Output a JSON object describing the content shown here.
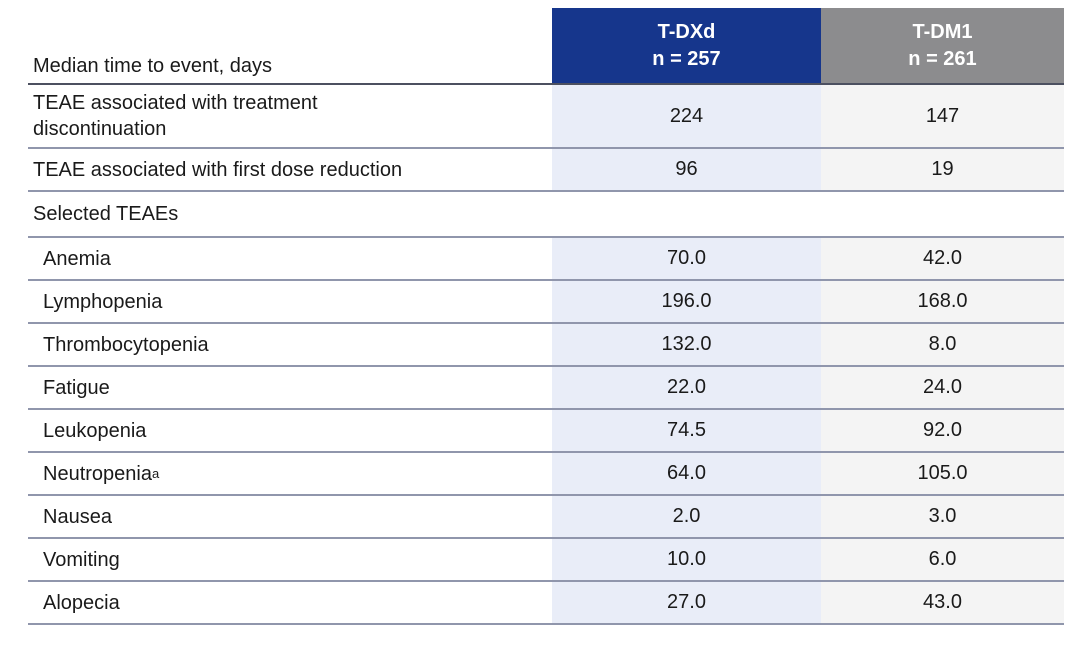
{
  "chart_data": {
    "type": "table",
    "title": "Median time to event, days",
    "corner_header": "Median time to event, days",
    "column_headers": [
      {
        "treatment": "T-DXd",
        "n": "n = 257"
      },
      {
        "treatment": "T-DM1",
        "n": "n = 261"
      }
    ],
    "rows": [
      {
        "type": "main",
        "label": "TEAE associated with treatment\ndiscontinuation",
        "values": [
          "224",
          "147"
        ]
      },
      {
        "type": "main",
        "label": "TEAE associated with first dose reduction",
        "values": [
          "96",
          "19"
        ]
      },
      {
        "type": "section",
        "label": "Selected TEAEs",
        "values": [
          "",
          ""
        ]
      },
      {
        "type": "item",
        "label": "Anemia",
        "values": [
          "70.0",
          "42.0"
        ]
      },
      {
        "type": "item",
        "label": "Lymphopenia",
        "values": [
          "196.0",
          "168.0"
        ]
      },
      {
        "type": "item",
        "label": "Thrombocytopenia",
        "values": [
          "132.0",
          "8.0"
        ]
      },
      {
        "type": "item",
        "label": "Fatigue",
        "values": [
          "22.0",
          "24.0"
        ]
      },
      {
        "type": "item",
        "label": "Neutropenia",
        "sup": "a",
        "values": [
          "64.0",
          "105.0"
        ],
        "order_note": ""
      },
      {
        "type": "item",
        "label": "Nausea",
        "values": [
          "2.0",
          "3.0"
        ]
      },
      {
        "type": "item",
        "label": "Vomiting",
        "values": [
          "10.0",
          "6.0"
        ]
      },
      {
        "type": "item",
        "label": "Alopecia",
        "values": [
          "27.0",
          "43.0"
        ]
      }
    ],
    "row_order_fix": {
      "leukopenia_index": 7,
      "label": "Leukopenia",
      "values": [
        "74.5",
        "92.0"
      ]
    }
  },
  "colors": {
    "tdxd_header_bg": "#16368C",
    "tdm1_header_bg": "#8C8C8E",
    "tdxd_col_bg": "#E9EDF8",
    "tdm1_col_bg": "#F4F4F4",
    "header_text": "#FFFFFF",
    "body_text": "#1A1A1A",
    "header_rule": "#4C5060",
    "row_rule": "#9096AC"
  }
}
